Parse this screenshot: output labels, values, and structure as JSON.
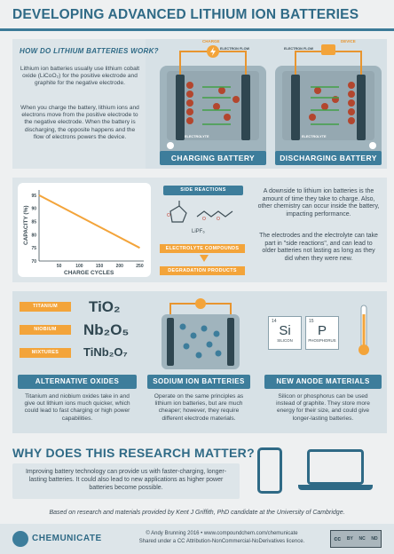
{
  "title": "DEVELOPING ADVANCED LITHIUM ION BATTERIES",
  "section1": {
    "heading": "HOW DO LITHIUM BATTERIES WORK?",
    "para1": "Lithium ion batteries usually use lithium cobalt oxide (LiCoO₂) for the positive electrode and graphite for the negative electrode.",
    "para2": "When you charge the battery, lithium ions and electrons move from the positive electrode to the negative electrode. When the battery is discharging, the opposite happens and the flow of electrons powers the device.",
    "charge_label": "CHARGE",
    "electron_flow": "ELECTRON FLOW",
    "electrolyte": "ELECTROLYTE",
    "charging_battery": "CHARGING BATTERY",
    "electron_flow2": "ELECTRON FLOW",
    "device_label": "DEVICE",
    "electrolyte2": "ELECTROLYTE",
    "discharging_battery": "DISCHARGING BATTERY"
  },
  "section2": {
    "ylabel": "CAPACITY (%)",
    "xlabel": "CHARGE CYCLES",
    "side_reactions": "SIDE REACTIONS",
    "lipf6": "LiPF₆",
    "electrolyte_compounds": "ELECTROLYTE COMPOUNDS",
    "degradation_products": "DEGRADATION PRODUCTS",
    "para1": "A downside to lithium ion batteries is the amount of time they take to charge. Also, other chemistry can occur inside the battery, impacting performance.",
    "para2": "The electrodes and the electrolyte can take part in \"side reactions\", and can lead to older batteries not lasting as long as they did when they were new."
  },
  "chart_data": {
    "type": "line",
    "x": [
      0,
      250
    ],
    "y": [
      95,
      75
    ],
    "xlabel": "CHARGE CYCLES",
    "ylabel": "CAPACITY (%)",
    "xticks": [
      "50",
      "100",
      "150",
      "200",
      "250"
    ],
    "yticks": [
      "95",
      "90",
      "85",
      "80",
      "75",
      "70"
    ],
    "xlim": [
      0,
      260
    ],
    "ylim": [
      70,
      97
    ],
    "line_color": "#f3a43a"
  },
  "section3": {
    "titanium": "TITANIUM",
    "tio2": "TiO₂",
    "niobium": "NIOBIUM",
    "nb2o5": "Nb₂O₅",
    "mixtures": "MIXTURES",
    "tinb2o7": "TiNb₂O₇",
    "alt_oxides": "ALTERNATIVE OXIDES",
    "alt_text": "Titanium and niobium oxides take in and give out lithium ions much quicker, which could lead to fast charging or high power capabilities.",
    "sodium_title": "SODIUM ION BATTERIES",
    "sodium_text": "Operate on the same principles as lithium ion batteries, but are much cheaper; however, they require different electrode materials.",
    "si_number": "14",
    "si_symbol": "Si",
    "si_name": "SILICON",
    "p_number": "15",
    "p_symbol": "P",
    "p_name": "PHOSPHORUS",
    "anode_title": "NEW ANODE MATERIALS",
    "anode_text": "Silicon or phosphorus can be used instead of graphite. They store more energy for their size, and could give longer-lasting batteries."
  },
  "section4": {
    "heading": "WHY DOES THIS RESEARCH MATTER?",
    "text": "Improving battery technology can provide us with faster-charging, longer-lasting batteries. It could also lead to new applications as higher power batteries become possible."
  },
  "footer": {
    "credit": "Based on research and materials provided by Kent J Griffith, PhD candidate at the University of Cambridge.",
    "brand": "CHEMUNICATE",
    "line1": "© Andy Brunning 2016 • www.compoundchem.com/chemunicate",
    "line2": "Shared under a CC Attribution-NonCommercial-NoDerivatives licence.",
    "cc": "cc",
    "by": "BY",
    "nc": "NC",
    "nd": "ND"
  },
  "colors": {
    "accent": "#3d7d9b",
    "orange": "#f3a43a",
    "green": "#4caf50",
    "title": "#2f6a86"
  }
}
